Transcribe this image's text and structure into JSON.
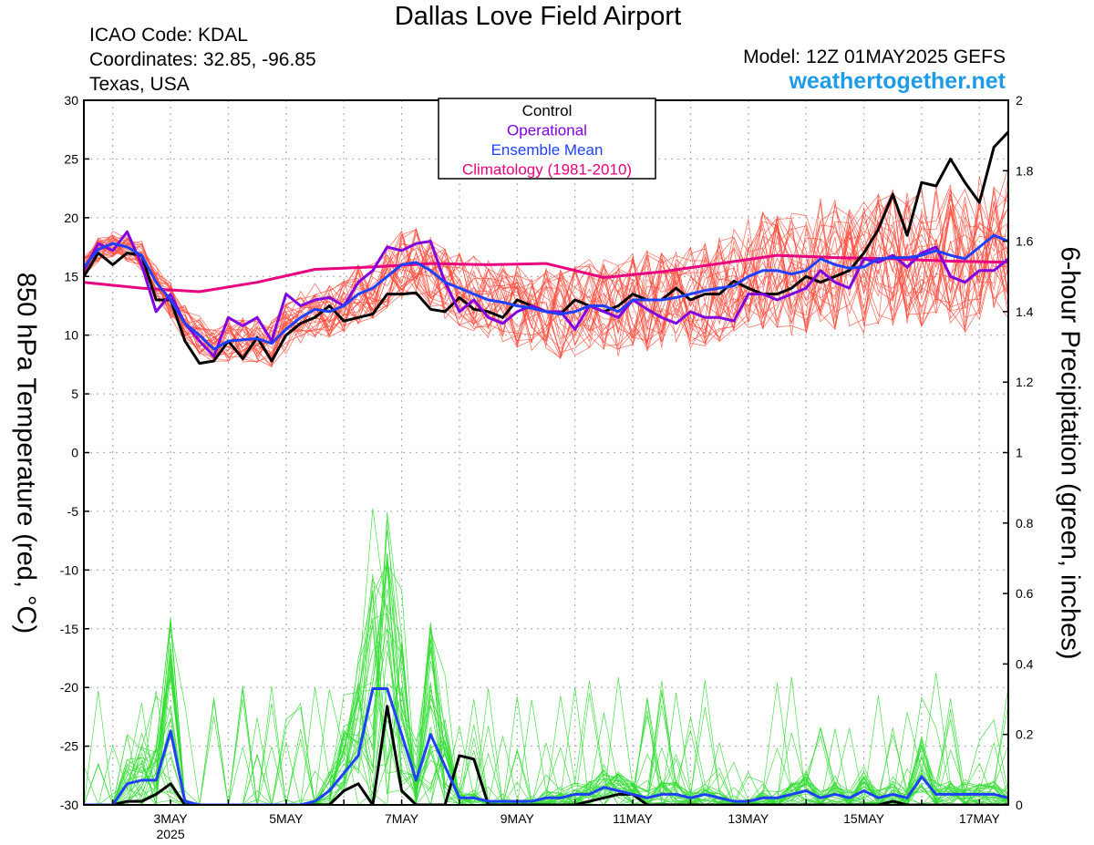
{
  "header": {
    "title": "Dallas Love Field Airport",
    "icao": "ICAO Code: KDAL",
    "coordinates": "Coordinates: 32.85, -96.85",
    "location": "Texas, USA",
    "model": "Model: 12Z 01MAY2025 GEFS",
    "brand": "weathertogether.net"
  },
  "chart_data": {
    "type": "line",
    "title": "Dallas Love Field Airport",
    "ylabel": "850 hPa Temperature (red, °C)",
    "y2label": "6-hour Precipitation (green, inches)",
    "ylim": [
      -30,
      30
    ],
    "y2lim": [
      0,
      2
    ],
    "yticks": [
      -30,
      -25,
      -20,
      -15,
      -10,
      -5,
      0,
      5,
      10,
      15,
      20,
      25,
      30
    ],
    "y2ticks": [
      0,
      0.2,
      0.4,
      0.6,
      0.8,
      1,
      1.2,
      1.4,
      1.6,
      1.8,
      2
    ],
    "xlim": [
      1.5,
      17.5
    ],
    "x_unit": "day of May 2025",
    "xticks": [
      {
        "x": 3,
        "label": "3MAY",
        "sub": "2025"
      },
      {
        "x": 5,
        "label": "5MAY"
      },
      {
        "x": 7,
        "label": "7MAY"
      },
      {
        "x": 9,
        "label": "9MAY"
      },
      {
        "x": 11,
        "label": "11MAY"
      },
      {
        "x": 13,
        "label": "13MAY"
      },
      {
        "x": 15,
        "label": "15MAY"
      },
      {
        "x": 17,
        "label": "17MAY"
      }
    ],
    "grid": true,
    "legend": {
      "position": "top-center",
      "entries": [
        {
          "label": "Control",
          "color": "#000000"
        },
        {
          "label": "Operational",
          "color": "#8000e0"
        },
        {
          "label": "Ensemble Mean",
          "color": "#2040ff"
        },
        {
          "label": "Climatology (1981-2010)",
          "color": "#e8007e"
        }
      ]
    },
    "colors": {
      "members_temp": "#ff4a3a",
      "members_precip": "#33dd33",
      "control": "#000000",
      "operational": "#8000e0",
      "mean": "#2040ff",
      "climatology": "#e8007e"
    },
    "series": [
      {
        "name": "Climatology (1981-2010)",
        "axis": "left",
        "x": [
          1.5,
          2.5,
          3.5,
          4.5,
          5.5,
          6.5,
          7.5,
          8.5,
          9.5,
          10.5,
          11.5,
          12.5,
          13.5,
          14.5,
          15.5,
          16.5,
          17.5
        ],
        "y": [
          14.5,
          14.0,
          13.7,
          14.5,
          15.6,
          15.8,
          16.1,
          16.0,
          16.1,
          14.9,
          15.4,
          16.1,
          16.8,
          16.6,
          16.5,
          16.3,
          16.2
        ]
      },
      {
        "name": "Control",
        "axis": "left",
        "x": [
          1.5,
          1.75,
          2.0,
          2.25,
          2.5,
          2.75,
          3.0,
          3.25,
          3.5,
          3.75,
          4.0,
          4.25,
          4.5,
          4.75,
          5.0,
          5.25,
          5.5,
          5.75,
          6.0,
          6.25,
          6.5,
          6.75,
          7.0,
          7.25,
          7.5,
          7.75,
          8.0,
          8.25,
          8.5,
          8.75,
          9.0,
          9.25,
          9.5,
          9.75,
          10.0,
          10.25,
          10.5,
          10.75,
          11.0,
          11.25,
          11.5,
          11.75,
          12.0,
          12.25,
          12.5,
          12.75,
          13.0,
          13.25,
          13.5,
          13.75,
          14.0,
          14.25,
          14.5,
          14.75,
          15.0,
          15.25,
          15.5,
          15.75,
          16.0,
          16.25,
          16.5,
          16.75,
          17.0,
          17.25,
          17.5
        ],
        "y": [
          15.0,
          17.0,
          16.0,
          17.0,
          16.8,
          13.0,
          13.0,
          9.5,
          7.6,
          7.8,
          9.5,
          8.0,
          9.8,
          7.8,
          10.0,
          11.0,
          11.5,
          12.5,
          11.2,
          11.5,
          11.8,
          13.5,
          13.5,
          13.6,
          12.2,
          12.0,
          13.2,
          12.2,
          12.0,
          11.5,
          13.0,
          12.5,
          12.0,
          11.8,
          13.0,
          12.5,
          12.0,
          12.5,
          13.5,
          13.0,
          13.0,
          14.0,
          13.0,
          13.5,
          13.5,
          14.6,
          14.0,
          13.5,
          13.5,
          14.0,
          15.0,
          14.5,
          15.0,
          15.5,
          17.0,
          19.0,
          22.0,
          18.5,
          23.0,
          22.7,
          25.0,
          23.0,
          21.3,
          26.0,
          27.3
        ]
      },
      {
        "name": "Operational",
        "axis": "left",
        "x": [
          1.5,
          1.75,
          2.0,
          2.25,
          2.5,
          2.75,
          3.0,
          3.25,
          3.5,
          3.75,
          4.0,
          4.25,
          4.5,
          4.75,
          5.0,
          5.25,
          5.5,
          5.75,
          6.0,
          6.25,
          6.5,
          6.75,
          7.0,
          7.25,
          7.5,
          7.75,
          8.0,
          8.25,
          8.5,
          8.75,
          9.0,
          9.25,
          9.5,
          9.75,
          10.0,
          10.25,
          10.5,
          10.75,
          11.0,
          11.25,
          11.5,
          11.75,
          12.0,
          12.25,
          12.5,
          12.75,
          13.0,
          13.25,
          13.5,
          13.75,
          14.0,
          14.25,
          14.5,
          14.75,
          15.0,
          15.25,
          15.5,
          15.75,
          16.0,
          16.25,
          16.5,
          16.75,
          17.0,
          17.25,
          17.5
        ],
        "y": [
          15.5,
          17.8,
          17.2,
          18.8,
          16.0,
          12.0,
          13.5,
          11.0,
          9.5,
          8.2,
          11.5,
          10.8,
          11.5,
          9.5,
          13.5,
          12.5,
          13.0,
          13.2,
          12.5,
          14.5,
          15.5,
          17.5,
          17.2,
          17.8,
          18.0,
          14.5,
          12.0,
          13.0,
          11.5,
          11.0,
          12.0,
          12.5,
          12.0,
          12.0,
          10.5,
          12.5,
          12.0,
          11.5,
          13.0,
          12.2,
          11.5,
          11.0,
          12.0,
          11.5,
          11.5,
          11.2,
          13.5,
          13.5,
          13.0,
          13.5,
          14.0,
          15.5,
          14.5,
          14.0,
          16.5,
          16.2,
          16.8,
          15.8,
          17.0,
          17.5,
          15.0,
          14.5,
          15.5,
          15.5,
          16.5
        ]
      },
      {
        "name": "Ensemble Mean",
        "axis": "left",
        "x": [
          1.5,
          1.75,
          2.0,
          2.25,
          2.5,
          2.75,
          3.0,
          3.25,
          3.5,
          3.75,
          4.0,
          4.25,
          4.5,
          4.75,
          5.0,
          5.25,
          5.5,
          5.75,
          6.0,
          6.25,
          6.5,
          6.75,
          7.0,
          7.25,
          7.5,
          7.75,
          8.0,
          8.25,
          8.5,
          8.75,
          9.0,
          9.25,
          9.5,
          9.75,
          10.0,
          10.25,
          10.5,
          10.75,
          11.0,
          11.25,
          11.5,
          11.75,
          12.0,
          12.25,
          12.5,
          12.75,
          13.0,
          13.25,
          13.5,
          13.75,
          14.0,
          14.25,
          14.5,
          14.75,
          15.0,
          15.25,
          15.5,
          15.75,
          16.0,
          16.25,
          16.5,
          16.75,
          17.0,
          17.25,
          17.5
        ],
        "y": [
          15.8,
          17.3,
          17.8,
          17.5,
          16.8,
          14.5,
          13.0,
          11.0,
          10.0,
          8.8,
          9.5,
          9.6,
          9.7,
          9.3,
          10.5,
          11.5,
          12.2,
          12.0,
          12.5,
          13.5,
          14.0,
          15.0,
          16.0,
          16.2,
          15.5,
          14.5,
          14.0,
          13.5,
          13.0,
          12.8,
          12.5,
          12.3,
          12.0,
          11.8,
          12.0,
          12.5,
          12.5,
          12.0,
          13.0,
          13.0,
          13.0,
          13.2,
          13.5,
          13.8,
          14.0,
          14.2,
          15.0,
          15.5,
          15.5,
          15.2,
          15.5,
          16.5,
          16.0,
          15.7,
          15.8,
          16.5,
          16.6,
          16.6,
          16.8,
          17.2,
          16.8,
          16.5,
          17.5,
          18.5,
          18.0
        ]
      },
      {
        "name": "Control",
        "axis": "right",
        "x": [
          1.5,
          1.75,
          2.0,
          2.25,
          2.5,
          2.75,
          3.0,
          3.25,
          3.5,
          3.75,
          4.0,
          4.25,
          4.5,
          4.75,
          5.0,
          5.25,
          5.5,
          5.75,
          6.0,
          6.25,
          6.5,
          6.75,
          7.0,
          7.25,
          7.5,
          7.75,
          8.0,
          8.25,
          8.5,
          8.75,
          9.0,
          9.25,
          9.5,
          9.75,
          10.0,
          10.25,
          10.5,
          10.75,
          11.0,
          11.25,
          11.5,
          11.75,
          12.0,
          12.25,
          12.5,
          12.75,
          13.0,
          13.25,
          13.5,
          13.75,
          14.0,
          14.25,
          14.5,
          14.75,
          15.0,
          15.25,
          15.5,
          15.75,
          16.0,
          16.25,
          16.5,
          16.75,
          17.0,
          17.25,
          17.5
        ],
        "y": [
          0,
          0,
          0,
          0.01,
          0.01,
          0.03,
          0.06,
          0,
          0,
          0,
          0,
          0,
          0,
          0,
          0,
          0,
          0,
          0,
          0.04,
          0.06,
          0,
          0.28,
          0.04,
          0,
          0,
          0,
          0.14,
          0.13,
          0,
          0,
          0,
          0,
          0,
          0,
          0,
          0.01,
          0.02,
          0.03,
          0.03,
          0,
          0,
          0,
          0,
          0,
          0,
          0,
          0,
          0,
          0,
          0,
          0,
          0,
          0,
          0,
          0,
          0,
          0.01,
          0,
          0,
          0,
          0,
          0,
          0,
          0,
          0
        ]
      },
      {
        "name": "Ensemble Mean",
        "axis": "right",
        "x": [
          1.5,
          1.75,
          2.0,
          2.25,
          2.5,
          2.75,
          3.0,
          3.25,
          3.5,
          3.75,
          4.0,
          4.25,
          4.5,
          4.75,
          5.0,
          5.25,
          5.5,
          5.75,
          6.0,
          6.25,
          6.5,
          6.75,
          7.0,
          7.25,
          7.5,
          7.75,
          8.0,
          8.25,
          8.5,
          8.75,
          9.0,
          9.25,
          9.5,
          9.75,
          10.0,
          10.25,
          10.5,
          10.75,
          11.0,
          11.25,
          11.5,
          11.75,
          12.0,
          12.25,
          12.5,
          12.75,
          13.0,
          13.25,
          13.5,
          13.75,
          14.0,
          14.25,
          14.5,
          14.75,
          15.0,
          15.25,
          15.5,
          15.75,
          16.0,
          16.25,
          16.5,
          16.75,
          17.0,
          17.25,
          17.5
        ],
        "y": [
          0,
          0,
          0,
          0.06,
          0.07,
          0.07,
          0.21,
          0.01,
          0,
          0,
          0,
          0,
          0,
          0,
          0,
          0,
          0.01,
          0.04,
          0.09,
          0.14,
          0.33,
          0.33,
          0.2,
          0.07,
          0.2,
          0.11,
          0.02,
          0.02,
          0.01,
          0.01,
          0.01,
          0.01,
          0.02,
          0.02,
          0.03,
          0.03,
          0.05,
          0.04,
          0.03,
          0.02,
          0.03,
          0.03,
          0.02,
          0.03,
          0.02,
          0.01,
          0.01,
          0.02,
          0.02,
          0.03,
          0.04,
          0.02,
          0.03,
          0.02,
          0.04,
          0.02,
          0.03,
          0.02,
          0.08,
          0.03,
          0.03,
          0.03,
          0.03,
          0.03,
          0.02
        ]
      }
    ]
  }
}
